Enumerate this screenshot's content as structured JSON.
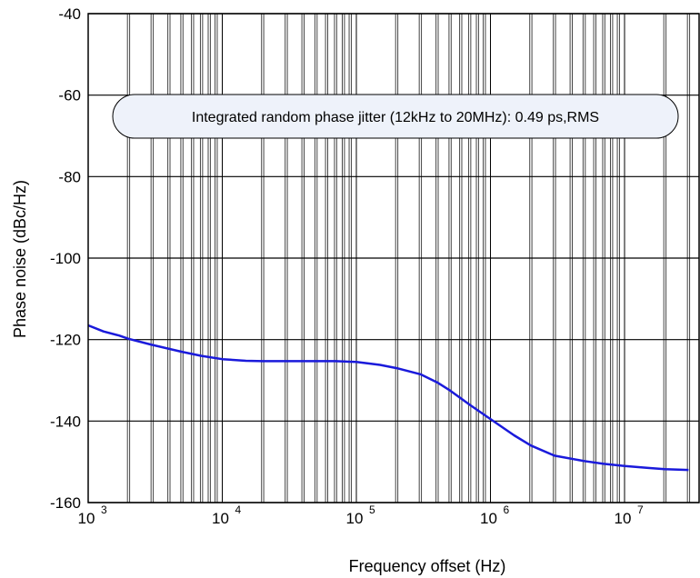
{
  "chart_data": {
    "type": "line",
    "title": "",
    "xlabel": "Frequency offset (Hz)",
    "ylabel": "Phase noise (dBc/Hz)",
    "xscale": "log",
    "xlim": [
      1000,
      30000000
    ],
    "ylim": [
      -160,
      -40
    ],
    "x_ticks": [
      {
        "base": "10",
        "exp": "3"
      },
      {
        "base": "10",
        "exp": "4"
      },
      {
        "base": "10",
        "exp": "5"
      },
      {
        "base": "10",
        "exp": "6"
      },
      {
        "base": "10",
        "exp": "7"
      }
    ],
    "y_ticks": [
      "-40",
      "-60",
      "-80",
      "-100",
      "-120",
      "-140",
      "-160"
    ],
    "y_tick_values": [
      -40,
      -60,
      -80,
      -100,
      -120,
      -140,
      -160
    ],
    "grid": true,
    "annotation": "Integrated random phase jitter (12kHz to 20MHz): 0.49 ps,RMS",
    "series": [
      {
        "color": "#1a1adb",
        "x": [
          1000,
          1300,
          1700,
          2000,
          3000,
          5000,
          7000,
          10000,
          15000,
          20000,
          30000,
          50000,
          70000,
          100000,
          150000,
          200000,
          300000,
          400000,
          500000,
          700000,
          1000000,
          1500000,
          2000000,
          3000000,
          5000000,
          7000000,
          10000000,
          15000000,
          20000000,
          30000000
        ],
        "y": [
          -116.5,
          -118,
          -119,
          -119.8,
          -121.3,
          -123,
          -124,
          -124.8,
          -125.2,
          -125.3,
          -125.3,
          -125.3,
          -125.3,
          -125.5,
          -126.2,
          -127,
          -128.5,
          -130.5,
          -132.5,
          -136,
          -139.5,
          -143.5,
          -146,
          -148.5,
          -149.8,
          -150.5,
          -151,
          -151.5,
          -151.8,
          -152
        ]
      }
    ]
  }
}
